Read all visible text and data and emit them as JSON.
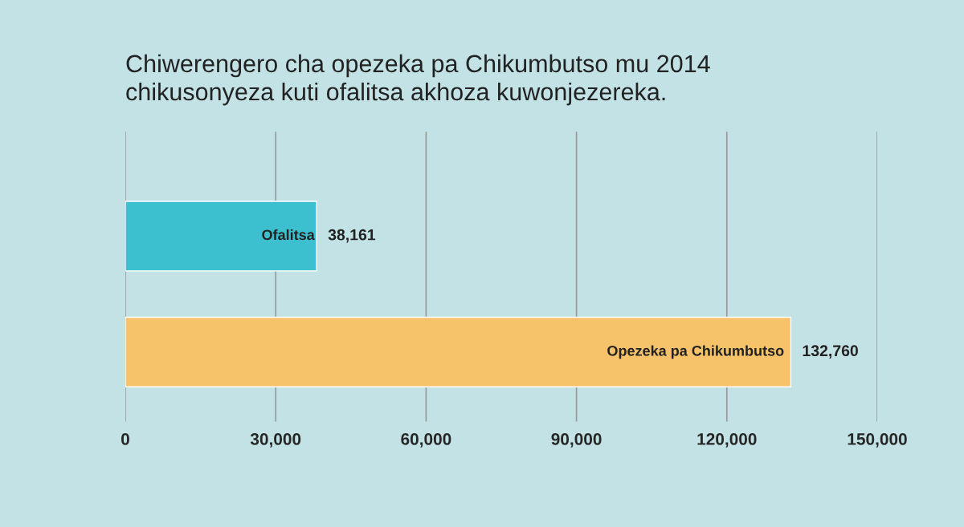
{
  "chart_data": {
    "type": "bar",
    "orientation": "horizontal",
    "title": "Chiwerengero cha opezeka pa Chikumbutso mu 2014\nchikusonyeza kuti ofalitsa akhoza kuwonjezereka.",
    "categories": [
      "Ofalitsa",
      "Opezeka pa Chikumbutso"
    ],
    "values": [
      38161,
      132760
    ],
    "colors": [
      "#3cc0cf",
      "#f7c36a"
    ],
    "value_labels": [
      "38,161",
      "132,760"
    ],
    "xlim": [
      0,
      150000
    ],
    "xticks": [
      {
        "value": 0,
        "label": "0"
      },
      {
        "value": 30000,
        "label": "30,000"
      },
      {
        "value": 60000,
        "label": "60,000"
      },
      {
        "value": 90000,
        "label": "90,000"
      },
      {
        "value": 120000,
        "label": "120,000"
      },
      {
        "value": 150000,
        "label": "150,000"
      }
    ],
    "grid": "x"
  }
}
